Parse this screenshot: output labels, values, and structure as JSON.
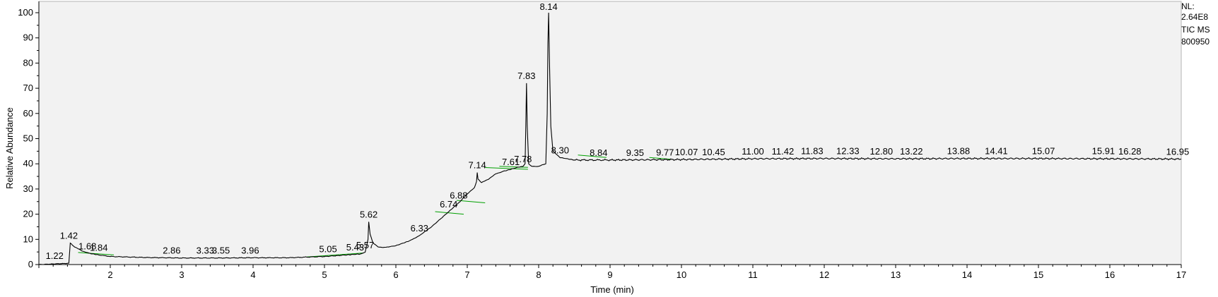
{
  "side_info": {
    "nl": "NL:",
    "intensity": "2.64E8",
    "scan": "TIC  MS",
    "sample": "800950"
  },
  "chart_data": {
    "type": "line",
    "xlabel": "Time (min)",
    "ylabel": "Relative Abundance",
    "xlim": [
      1.0,
      17.0
    ],
    "ylim": [
      0,
      100
    ],
    "xticks": [
      2,
      3,
      4,
      5,
      6,
      7,
      8,
      9,
      10,
      11,
      12,
      13,
      14,
      15,
      16,
      17
    ],
    "yticks": [
      0,
      10,
      20,
      30,
      40,
      50,
      60,
      70,
      80,
      90,
      100
    ],
    "colors": {
      "trace": "#000000",
      "baseline": "#00a000",
      "plot_bg": "#f2f2f2"
    },
    "series": [
      {
        "x": [
          1.0,
          1.42,
          1.44,
          1.5,
          1.6,
          1.7,
          1.84,
          2.0,
          2.5,
          3.0,
          3.5,
          4.0,
          4.5,
          5.0,
          5.3,
          5.5,
          5.57,
          5.61,
          5.62,
          5.64,
          5.68,
          5.75,
          5.85,
          6.0,
          6.2,
          6.33,
          6.5,
          6.74,
          6.88,
          7.0,
          7.1,
          7.13,
          7.14,
          7.15,
          7.2,
          7.3,
          7.4,
          7.5,
          7.61,
          7.7,
          7.78,
          7.81,
          7.82,
          7.83,
          7.84,
          7.86,
          7.9,
          8.0,
          8.1,
          8.12,
          8.13,
          8.14,
          8.15,
          8.17,
          8.2,
          8.3,
          8.5,
          9.0,
          10.0,
          11.0,
          12.0,
          13.0,
          14.0,
          15.0,
          16.0,
          17.0
        ],
        "y": [
          0,
          0.5,
          8.5,
          7.0,
          5.5,
          4.5,
          3.8,
          3.2,
          2.8,
          2.6,
          2.6,
          2.7,
          2.7,
          3.2,
          3.8,
          4.2,
          4.8,
          10.0,
          17.0,
          12.0,
          8.5,
          7.0,
          6.8,
          7.5,
          9.5,
          11.5,
          15.0,
          21.0,
          24.5,
          28.0,
          30.5,
          33.0,
          36.5,
          34.0,
          32.5,
          34.0,
          36.0,
          37.0,
          37.8,
          38.6,
          39.0,
          40.0,
          55.0,
          72.0,
          55.0,
          40.0,
          39.0,
          39.0,
          40.0,
          60.0,
          88.0,
          100.0,
          82.0,
          55.0,
          45.0,
          42.5,
          41.5,
          41.5,
          41.7,
          42.0,
          42.1,
          42.0,
          42.1,
          42.1,
          42.0,
          41.9
        ]
      }
    ],
    "peak_labels": [
      {
        "t": 1.22,
        "label": "1.22",
        "y": 0.5
      },
      {
        "t": 1.42,
        "label": "1.42",
        "y": 8.5
      },
      {
        "t": 1.68,
        "label": "1.68",
        "y": 4.3
      },
      {
        "t": 1.84,
        "label": "1.84",
        "y": 3.8
      },
      {
        "t": 2.86,
        "label": "2.86",
        "y": 2.7
      },
      {
        "t": 3.33,
        "label": "3.33",
        "y": 2.6
      },
      {
        "t": 3.55,
        "label": "3.55",
        "y": 2.6
      },
      {
        "t": 3.96,
        "label": "3.96",
        "y": 2.7
      },
      {
        "t": 5.05,
        "label": "5.05",
        "y": 3.2
      },
      {
        "t": 5.43,
        "label": "5.43",
        "y": 3.9
      },
      {
        "t": 5.57,
        "label": "5.57",
        "y": 4.8
      },
      {
        "t": 5.62,
        "label": "5.62",
        "y": 17.0
      },
      {
        "t": 6.33,
        "label": "6.33",
        "y": 11.5
      },
      {
        "t": 6.74,
        "label": "6.74",
        "y": 21.0
      },
      {
        "t": 6.88,
        "label": "6.88",
        "y": 24.5
      },
      {
        "t": 7.14,
        "label": "7.14",
        "y": 36.5
      },
      {
        "t": 7.61,
        "label": "7.61",
        "y": 37.8
      },
      {
        "t": 7.78,
        "label": "7.78",
        "y": 39.0
      },
      {
        "t": 7.83,
        "label": "7.83",
        "y": 72.0
      },
      {
        "t": 8.14,
        "label": "8.14",
        "y": 100.0
      },
      {
        "t": 8.3,
        "label": "8.30",
        "y": 42.5
      },
      {
        "t": 8.84,
        "label": "8.84",
        "y": 41.5
      },
      {
        "t": 9.35,
        "label": "9.35",
        "y": 41.5
      },
      {
        "t": 9.77,
        "label": "9.77",
        "y": 41.6
      },
      {
        "t": 10.07,
        "label": "10.07",
        "y": 41.7
      },
      {
        "t": 10.45,
        "label": "10.45",
        "y": 41.8
      },
      {
        "t": 11.0,
        "label": "11.00",
        "y": 42.0
      },
      {
        "t": 11.42,
        "label": "11.42",
        "y": 42.0
      },
      {
        "t": 11.83,
        "label": "11.83",
        "y": 42.1
      },
      {
        "t": 12.33,
        "label": "12.33",
        "y": 42.1
      },
      {
        "t": 12.8,
        "label": "12.80",
        "y": 42.0
      },
      {
        "t": 13.22,
        "label": "13.22",
        "y": 42.0
      },
      {
        "t": 13.88,
        "label": "13.88",
        "y": 42.1
      },
      {
        "t": 14.41,
        "label": "14.41",
        "y": 42.1
      },
      {
        "t": 15.07,
        "label": "15.07",
        "y": 42.1
      },
      {
        "t": 15.91,
        "label": "15.91",
        "y": 42.1
      },
      {
        "t": 16.28,
        "label": "16.28",
        "y": 42.0
      },
      {
        "t": 16.95,
        "label": "16.95",
        "y": 41.9
      }
    ],
    "integration_baselines": [
      {
        "t1": 1.55,
        "t2": 2.05,
        "y1": 4.8,
        "y2": 3.8
      },
      {
        "t1": 4.75,
        "t2": 5.55,
        "y1": 3.0,
        "y2": 4.6
      },
      {
        "t1": 6.55,
        "t2": 6.95,
        "y1": 21.0,
        "y2": 20.0
      },
      {
        "t1": 6.85,
        "t2": 7.25,
        "y1": 25.5,
        "y2": 24.5
      },
      {
        "t1": 7.25,
        "t2": 7.85,
        "y1": 38.5,
        "y2": 37.8
      },
      {
        "t1": 7.45,
        "t2": 7.85,
        "y1": 39.0,
        "y2": 38.6
      },
      {
        "t1": 8.55,
        "t2": 8.95,
        "y1": 43.5,
        "y2": 42.5
      },
      {
        "t1": 9.55,
        "t2": 9.85,
        "y1": 42.5,
        "y2": 41.8
      }
    ]
  }
}
